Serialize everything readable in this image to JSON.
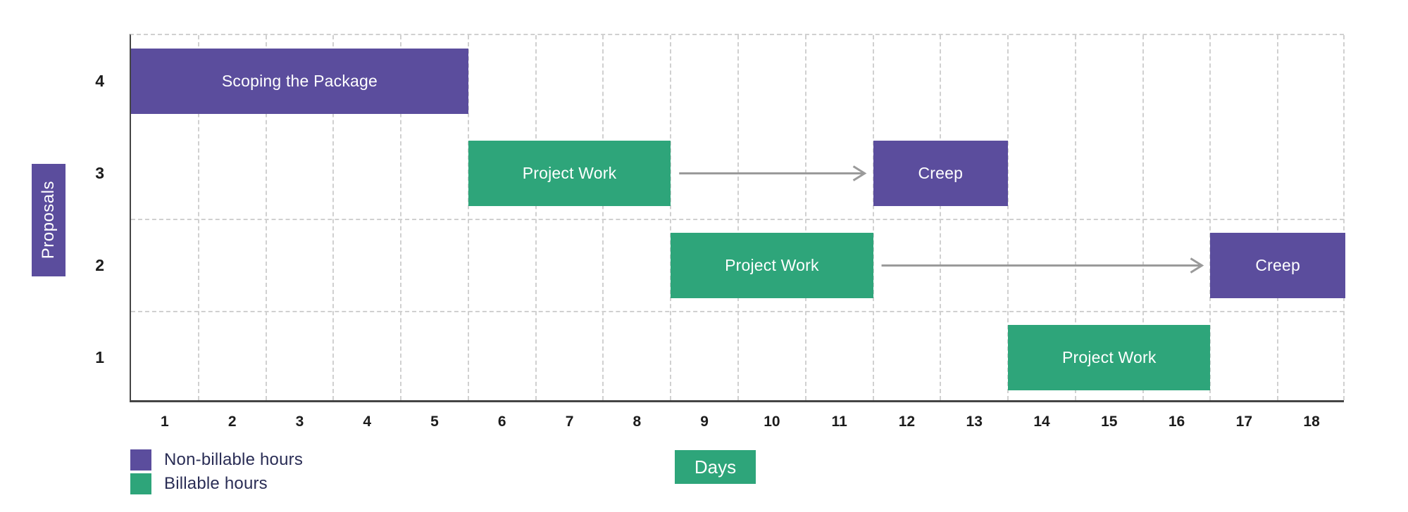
{
  "chart_data": {
    "type": "bar",
    "subtype": "gantt",
    "title": "",
    "xlabel": "Days",
    "ylabel": "Proposals",
    "x_ticks": [
      "1",
      "2",
      "3",
      "4",
      "5",
      "6",
      "7",
      "8",
      "9",
      "10",
      "11",
      "12",
      "13",
      "14",
      "15",
      "16",
      "17",
      "18"
    ],
    "x_range": [
      0.5,
      18.5
    ],
    "row_labels": [
      "4",
      "3",
      "2",
      "1"
    ],
    "bars": [
      {
        "row": "4",
        "start_day": 1,
        "end_day": 5,
        "label": "Scoping the Package",
        "series": "non_billable"
      },
      {
        "row": "3",
        "start_day": 6,
        "end_day": 8,
        "label": "Project Work",
        "series": "billable"
      },
      {
        "row": "3",
        "start_day": 12,
        "end_day": 13,
        "label": "Creep",
        "series": "non_billable"
      },
      {
        "row": "2",
        "start_day": 9,
        "end_day": 11,
        "label": "Project Work",
        "series": "billable"
      },
      {
        "row": "2",
        "start_day": 17,
        "end_day": 18,
        "label": "Creep",
        "series": "non_billable"
      },
      {
        "row": "1",
        "start_day": 14,
        "end_day": 16,
        "label": "Project Work",
        "series": "billable"
      }
    ],
    "arrows": [
      {
        "row": "3",
        "from_edge": 8.5,
        "to_edge": 11.5
      },
      {
        "row": "2",
        "from_edge": 11.5,
        "to_edge": 16.5
      }
    ],
    "legend": [
      {
        "key": "non_billable",
        "label": "Non-billable hours",
        "color": "#5b4d9d"
      },
      {
        "key": "billable",
        "label": "Billable hours",
        "color": "#2ea57a"
      }
    ],
    "legend_position": "bottom-left",
    "grid": {
      "vertical": "dashed line at every day boundary (1.5 through 18.5)",
      "horizontal_dashed_row_boundaries": [
        "top",
        "between rows 2 and 3",
        "between rows 1 and 2"
      ]
    },
    "colors": {
      "purple": "#5b4d9d",
      "green": "#2ea57a",
      "arrow": "#9a9a9a",
      "grid": "#d0d0d0",
      "axis_dark": "#454545",
      "tick_text": "#1c1c1c",
      "legend_text": "#2a2d55",
      "bar_text": "#ffffff",
      "background": "#ffffff"
    }
  }
}
